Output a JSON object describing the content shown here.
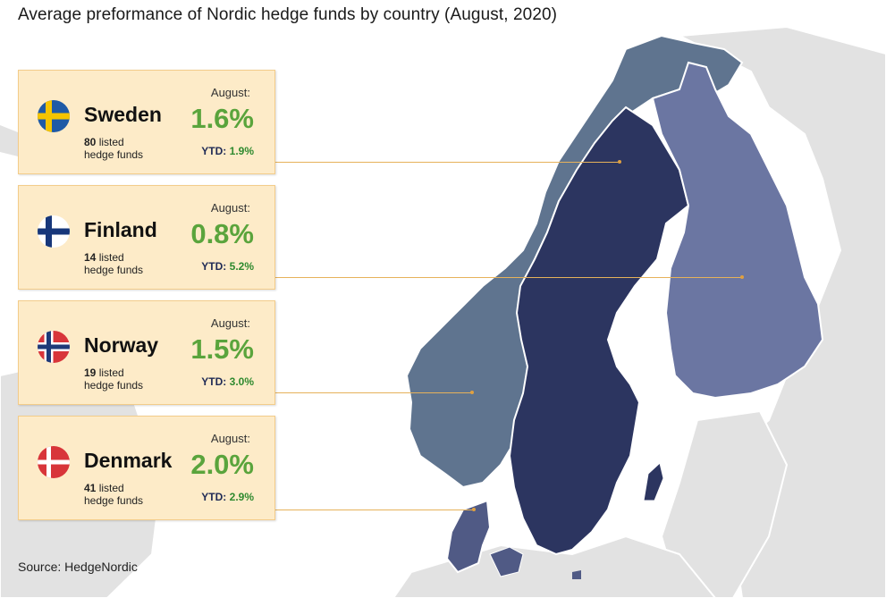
{
  "title": "Average preformance of Nordic hedge funds by country (August, 2020)",
  "source": "Source: HedgeNordic",
  "colors": {
    "sweden": "#2c3560",
    "finland": "#6b76a2",
    "norway": "#5f748f",
    "denmark": "#505a85",
    "neighbors": "#e2e2e2",
    "card_bg": "#fdebc8",
    "value_green": "#5aa43c"
  },
  "countries": [
    {
      "name": "Sweden",
      "flag": "sweden-flag",
      "august_label": "August:",
      "august_value": "1.6%",
      "ytd_label": "YTD:",
      "ytd_value": "1.9%",
      "listed_count": "80",
      "listed_label_1": "listed",
      "listed_label_2": "hedge funds"
    },
    {
      "name": "Finland",
      "flag": "finland-flag",
      "august_label": "August:",
      "august_value": "0.8%",
      "ytd_label": "YTD:",
      "ytd_value": "5.2%",
      "listed_count": "14",
      "listed_label_1": "listed",
      "listed_label_2": "hedge funds"
    },
    {
      "name": "Norway",
      "flag": "norway-flag",
      "august_label": "August:",
      "august_value": "1.5%",
      "ytd_label": "YTD:",
      "ytd_value": "3.0%",
      "listed_count": "19",
      "listed_label_1": "listed",
      "listed_label_2": "hedge funds"
    },
    {
      "name": "Denmark",
      "flag": "denmark-flag",
      "august_label": "August:",
      "august_value": "2.0%",
      "ytd_label": "YTD:",
      "ytd_value": "2.9%",
      "listed_count": "41",
      "listed_label_1": "listed",
      "listed_label_2": "hedge funds"
    }
  ]
}
